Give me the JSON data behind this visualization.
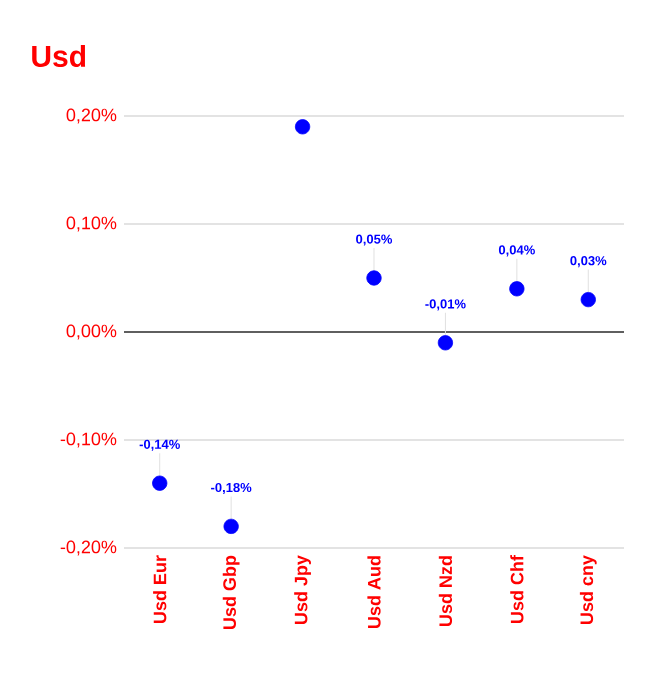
{
  "chart_data": {
    "type": "scatter",
    "title": "Usd",
    "categories": [
      "Usd Eur",
      "Usd Gbp",
      "Usd Jpy",
      "Usd Aud",
      "Usd Nzd",
      "Usd Chf",
      "Usd cny"
    ],
    "values": [
      -0.14,
      -0.18,
      0.19,
      0.05,
      -0.01,
      0.04,
      0.03
    ],
    "value_labels": [
      "-0,14%",
      "-0,18%",
      null,
      "0,05%",
      "-0,01%",
      "0,04%",
      "0,03%"
    ],
    "color": "#0000ff",
    "marker": "circle",
    "ylim": [
      -0.2,
      0.2
    ],
    "yticks": [
      {
        "value": -0.2,
        "label": "-0,20%"
      },
      {
        "value": -0.1,
        "label": "-0,10%"
      },
      {
        "value": 0,
        "label": "0,00%"
      },
      {
        "value": 0.1,
        "label": "0,10%"
      },
      {
        "value": 0.2,
        "label": "0,20%"
      }
    ],
    "ref_lines": [
      {
        "axis": "y",
        "value": 0,
        "color": "#333333"
      }
    ],
    "grid": "y"
  }
}
